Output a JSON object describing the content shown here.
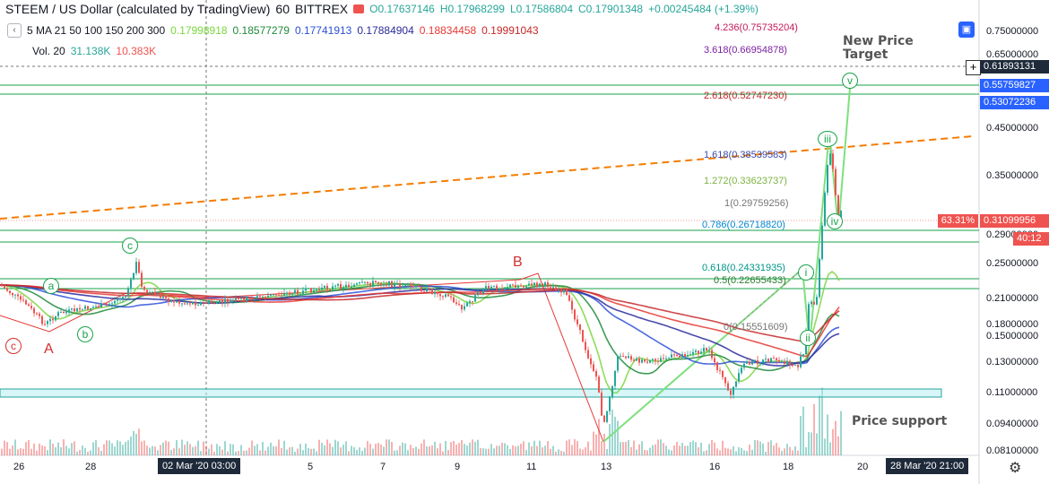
{
  "header": {
    "symbol": "STEEM / US Dollar (calculated by TradingView)",
    "interval": "60",
    "exchange": "BITTREX",
    "open": "O0.17637146",
    "high": "H0.17968299",
    "low": "L0.17586804",
    "close": "C0.17901348",
    "change": "+0.00245484 (+1.39%)"
  },
  "ma_indicator": {
    "label": "5 MA 21 50 100 150 200 300",
    "values": [
      "0.17998918",
      "0.18577279",
      "0.17741913",
      "0.17884904",
      "0.18834458",
      "0.19991043"
    ],
    "colors": [
      "#7bd63e",
      "#1f8a3a",
      "#2b4fd8",
      "#2a2a9c",
      "#e53935",
      "#c62828"
    ]
  },
  "vol_indicator": {
    "label": "Vol. 20",
    "v1": "31.138K",
    "v2": "10.383K"
  },
  "chart_data": {
    "type": "candlestick",
    "title": "STEEM / US Dollar (calculated by TradingView)",
    "x_labels": [
      "26",
      "28",
      "02 Mar '20  03:00",
      "5",
      "7",
      "9",
      "11",
      "13",
      "16",
      "18",
      "20",
      "28 Mar '20  21:00"
    ],
    "y_axis_labels": [
      "0.75000000",
      "0.65000000",
      "0.61893131",
      "0.55759827",
      "0.53072236",
      "0.45000000",
      "0.35000000",
      "0.31099956",
      "0.29000000",
      "0.25000000",
      "0.21000000",
      "0.18000000",
      "0.15000000",
      "0.13000000",
      "0.11000000",
      "0.09400000",
      "0.08100000"
    ],
    "last_price": "0.31099956",
    "last_change_pct": "63.31%",
    "countdown": "40:12",
    "crosshair_price": "0.61893131",
    "target_lines": [
      "0.55759827",
      "0.53072236"
    ],
    "fib_levels": [
      {
        "label": "4.236(0.75735204)",
        "color": "#c2185b"
      },
      {
        "label": "3.618(0.66954878)",
        "color": "#7b1fa2"
      },
      {
        "label": "2.618(0.52747230)",
        "color": "#c62828"
      },
      {
        "label": "1.618(0.38539583)",
        "color": "#3949ab"
      },
      {
        "label": "1.272(0.33623737)",
        "color": "#7cb342"
      },
      {
        "label": "1(0.29759256)",
        "color": "#757575"
      },
      {
        "label": "0.786(0.26718820)",
        "color": "#0288d1"
      },
      {
        "label": "0.618(0.24331935)",
        "color": "#009688"
      },
      {
        "label": "0.5(0.22655433)",
        "color": "#2e7d32"
      },
      {
        "label": "0(0.15551609)",
        "color": "#757575"
      }
    ],
    "annotations": [
      "New Price Target",
      "Price support"
    ],
    "wave_labels": [
      "A",
      "B",
      "a",
      "b",
      "c",
      "c",
      "i",
      "ii",
      "iii",
      "iv",
      "v"
    ]
  },
  "colors": {
    "up": "#26a69a",
    "down": "#ef5350",
    "fib_line": "#17a34a",
    "support_zone": "#26c6da",
    "trend": "#f57c00"
  }
}
